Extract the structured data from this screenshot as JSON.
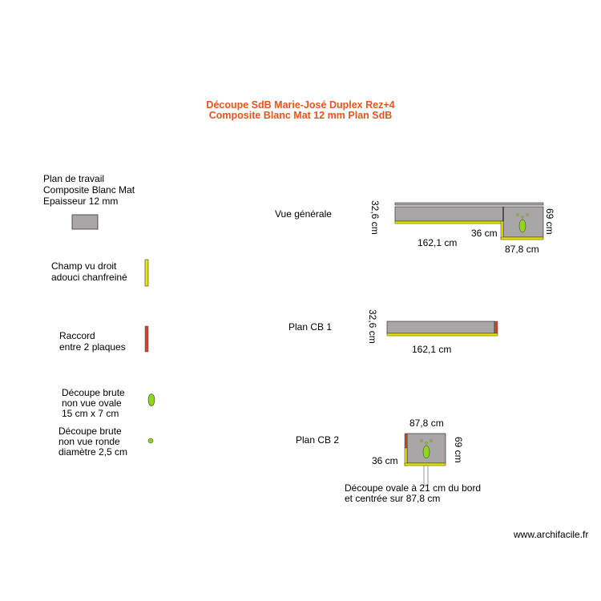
{
  "title": {
    "line1": "Découpe SdB Marie-José Duplex Rez+4",
    "line2": "Composite Blanc Mat 12 mm Plan SdB"
  },
  "legend": {
    "worktop": {
      "line1": "Plan de travail",
      "line2": "Composite Blanc Mat",
      "line3": "Epaisseur 12 mm"
    },
    "edge": {
      "line1": "Champ vu droit",
      "line2": "adouci chanfreiné"
    },
    "joint": {
      "line1": "Raccord",
      "line2": "entre 2 plaques"
    },
    "oval_cut": {
      "line1": "Découpe brute",
      "line2": "non vue ovale",
      "line3": "15 cm x 7 cm"
    },
    "round_cut": {
      "line1": "Découpe brute",
      "line2": "non vue ronde",
      "line3": "diamètre 2,5 cm"
    }
  },
  "overview": {
    "label": "Vue générale",
    "dim_depth": "32,6 cm",
    "dim_length": "162,1 cm",
    "dim_step": "36 cm",
    "dim_width": "87,8 cm",
    "dim_height": "69 cm"
  },
  "cb1": {
    "label": "Plan CB 1",
    "dim_depth": "32,6 cm",
    "dim_length": "162,1 cm"
  },
  "cb2": {
    "label": "Plan CB 2",
    "dim_width": "87,8 cm",
    "dim_height": "69 cm",
    "dim_step": "36 cm",
    "note_line1": "Découpe ovale à 21 cm du bord",
    "note_line2": "et centrée sur 87,8 cm"
  },
  "watermark": "www.archifacile.fr",
  "colors": {
    "title": "#e8541e",
    "worktop": "#aaa6a8",
    "edge": "#e9e500",
    "joint": "#c9472b",
    "cutout": "#8fd61c"
  }
}
